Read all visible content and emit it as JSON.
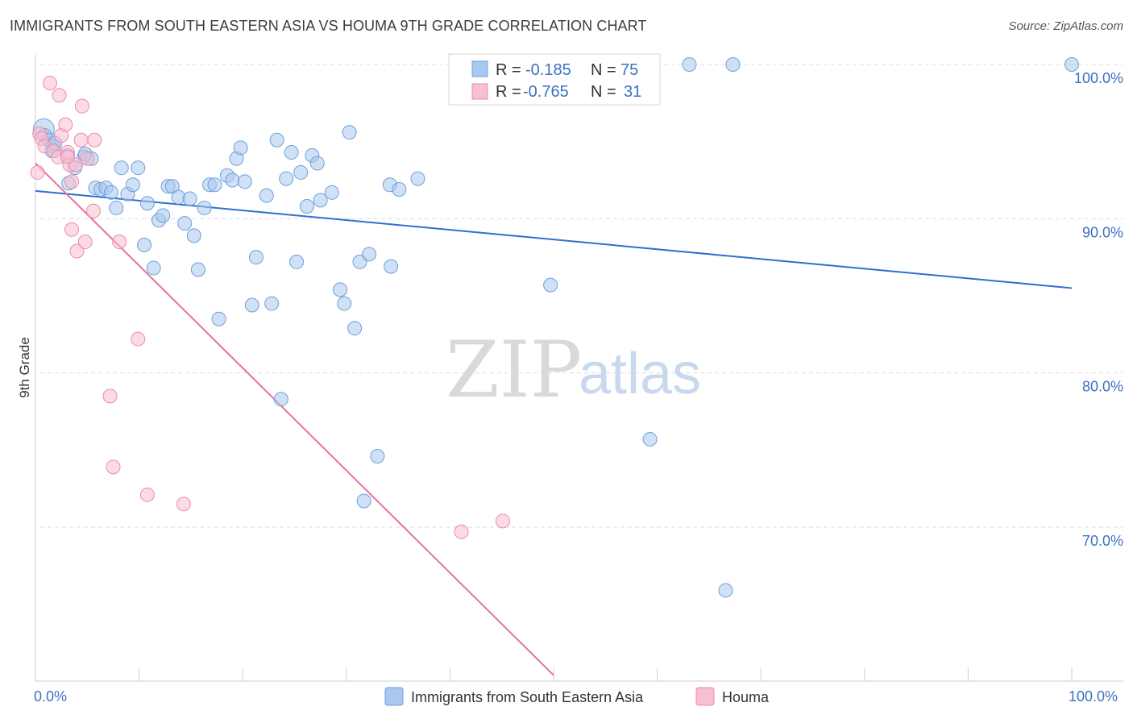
{
  "title": "IMMIGRANTS FROM SOUTH EASTERN ASIA VS HOUMA 9TH GRADE CORRELATION CHART",
  "source": "Source: ZipAtlas.com",
  "watermark": {
    "zip": "ZIP",
    "atlas": "atlas"
  },
  "stats": [
    {
      "r_label": "R =",
      "r_value": "-0.185",
      "n_label": "N =",
      "n_value": "75",
      "color": "#a9c8ef",
      "stroke": "#6d9fdc"
    },
    {
      "r_label": "R =",
      "r_value": "-0.765",
      "n_label": "N =",
      "n_value": "31",
      "color": "#f7bfd0",
      "stroke": "#ec8aab"
    }
  ],
  "chart_data": {
    "type": "scatter",
    "title": "IMMIGRANTS FROM SOUTH EASTERN ASIA VS HOUMA 9TH GRADE CORRELATION CHART",
    "xlabel": "",
    "ylabel": "9th Grade",
    "xlim": [
      0,
      100
    ],
    "ylim": [
      60.4,
      101
    ],
    "x_tick_labels": [
      "0.0%",
      "100.0%"
    ],
    "y_ticks": [
      70,
      80,
      90,
      100
    ],
    "y_tick_labels": [
      "70.0%",
      "80.0%",
      "90.0%",
      "100.0%"
    ],
    "grid": true,
    "legend_position": "bottom-center",
    "series": [
      {
        "name": "Immigrants from South Eastern Asia",
        "color": "#a9c8ef",
        "stroke": "#6d9fdc",
        "line_color": "#2f6fcf",
        "trend": {
          "x": [
            0,
            100
          ],
          "y": [
            91.8,
            85.5
          ]
        },
        "points": [
          [
            0.8,
            95.8
          ],
          [
            0.9,
            95.4
          ],
          [
            1.3,
            95.1
          ],
          [
            1.7,
            94.7
          ],
          [
            1.9,
            94.9
          ],
          [
            1.6,
            94.4
          ],
          [
            3.2,
            92.3
          ],
          [
            3.1,
            94.1
          ],
          [
            3.8,
            93.3
          ],
          [
            4.7,
            94.0
          ],
          [
            4.8,
            94.2
          ],
          [
            5.4,
            93.9
          ],
          [
            5.8,
            92.0
          ],
          [
            6.3,
            91.9
          ],
          [
            6.8,
            92.0
          ],
          [
            7.3,
            91.7
          ],
          [
            7.8,
            90.7
          ],
          [
            8.3,
            93.3
          ],
          [
            8.9,
            91.6
          ],
          [
            9.4,
            92.2
          ],
          [
            9.9,
            93.3
          ],
          [
            10.5,
            88.3
          ],
          [
            10.8,
            91.0
          ],
          [
            11.4,
            86.8
          ],
          [
            11.9,
            89.9
          ],
          [
            12.3,
            90.2
          ],
          [
            12.8,
            92.1
          ],
          [
            13.2,
            92.1
          ],
          [
            13.8,
            91.4
          ],
          [
            14.4,
            89.7
          ],
          [
            14.9,
            91.3
          ],
          [
            15.3,
            88.9
          ],
          [
            15.7,
            86.7
          ],
          [
            16.3,
            90.7
          ],
          [
            16.8,
            92.2
          ],
          [
            17.3,
            92.2
          ],
          [
            17.7,
            83.5
          ],
          [
            18.5,
            92.8
          ],
          [
            19.0,
            92.5
          ],
          [
            19.4,
            93.9
          ],
          [
            19.8,
            94.6
          ],
          [
            20.2,
            92.4
          ],
          [
            20.9,
            84.4
          ],
          [
            21.3,
            87.5
          ],
          [
            22.3,
            91.5
          ],
          [
            22.8,
            84.5
          ],
          [
            23.3,
            95.1
          ],
          [
            23.7,
            78.3
          ],
          [
            24.2,
            92.6
          ],
          [
            24.7,
            94.3
          ],
          [
            25.2,
            87.2
          ],
          [
            25.6,
            93.0
          ],
          [
            26.2,
            90.8
          ],
          [
            26.7,
            94.1
          ],
          [
            27.2,
            93.6
          ],
          [
            27.5,
            91.2
          ],
          [
            28.6,
            91.7
          ],
          [
            29.4,
            85.4
          ],
          [
            29.8,
            84.5
          ],
          [
            30.3,
            95.6
          ],
          [
            30.8,
            82.9
          ],
          [
            31.3,
            87.2
          ],
          [
            31.7,
            71.7
          ],
          [
            32.2,
            87.7
          ],
          [
            33.0,
            74.6
          ],
          [
            34.2,
            92.2
          ],
          [
            34.3,
            86.9
          ],
          [
            35.1,
            91.9
          ],
          [
            36.9,
            92.6
          ],
          [
            43.3,
            100.0
          ],
          [
            49.7,
            85.7
          ],
          [
            59.3,
            75.7
          ],
          [
            63.1,
            100.0
          ],
          [
            67.3,
            100.0
          ],
          [
            66.6,
            65.9
          ],
          [
            100.0,
            100.0
          ]
        ]
      },
      {
        "name": "Houma",
        "color": "#f7bfd0",
        "stroke": "#ec8aab",
        "line_color": "#e8719d",
        "trend": {
          "x": [
            0,
            50
          ],
          "y": [
            93.6,
            60.4
          ]
        },
        "points": [
          [
            0.2,
            93.0
          ],
          [
            0.4,
            95.5
          ],
          [
            0.6,
            95.2
          ],
          [
            0.9,
            94.7
          ],
          [
            1.4,
            98.8
          ],
          [
            1.8,
            94.4
          ],
          [
            2.2,
            94.0
          ],
          [
            2.3,
            98.0
          ],
          [
            2.5,
            95.4
          ],
          [
            2.9,
            96.1
          ],
          [
            3.1,
            94.3
          ],
          [
            3.3,
            93.5
          ],
          [
            3.5,
            92.4
          ],
          [
            3.5,
            89.3
          ],
          [
            3.9,
            93.5
          ],
          [
            4.0,
            87.9
          ],
          [
            4.4,
            95.1
          ],
          [
            4.5,
            97.3
          ],
          [
            4.8,
            88.5
          ],
          [
            5.0,
            93.9
          ],
          [
            5.6,
            90.5
          ],
          [
            5.7,
            95.1
          ],
          [
            7.2,
            78.5
          ],
          [
            7.5,
            73.9
          ],
          [
            8.1,
            88.5
          ],
          [
            9.9,
            82.2
          ],
          [
            10.8,
            72.1
          ],
          [
            14.3,
            71.5
          ],
          [
            41.1,
            69.7
          ],
          [
            45.1,
            70.4
          ],
          [
            3.1,
            94.0
          ]
        ]
      }
    ]
  },
  "legend": [
    {
      "label": "Immigrants from South Eastern Asia",
      "color": "#a9c8ef",
      "stroke": "#6d9fdc"
    },
    {
      "label": "Houma",
      "color": "#f7bfd0",
      "stroke": "#ec8aab"
    }
  ]
}
